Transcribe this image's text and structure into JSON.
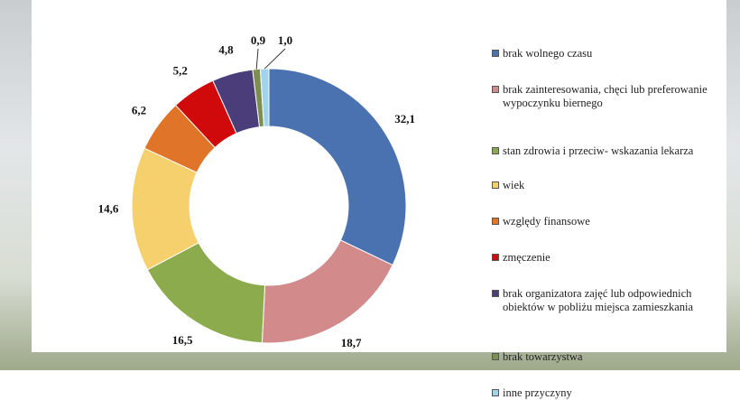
{
  "chart_data": {
    "type": "donut",
    "series": [
      {
        "name": "brak wolnego czasu",
        "color": "#4a72b0",
        "values": [
          32.1
        ],
        "value_labels": [
          "32,1"
        ]
      },
      {
        "name": "brak zainteresowania, chęci lub preferowanie wypoczynku biernego",
        "color": "#d28a8a",
        "values": [
          18.7
        ],
        "value_labels": [
          "18,7"
        ]
      },
      {
        "name": "stan zdrowia i przeciw- wskazania lekarza",
        "color": "#8cab4c",
        "values": [
          16.5
        ],
        "value_labels": [
          "16,5"
        ]
      },
      {
        "name": "wiek",
        "color": "#f6d06c",
        "values": [
          14.6
        ],
        "value_labels": [
          "14,6"
        ]
      },
      {
        "name": "względy finansowe",
        "color": "#e07428",
        "values": [
          6.2
        ],
        "value_labels": [
          "6,2"
        ]
      },
      {
        "name": "zmęczenie",
        "color": "#d00a0a",
        "values": [
          5.2
        ],
        "value_labels": [
          "5,2"
        ]
      },
      {
        "name": "brak organizatora zajęć lub odpowiednich obiektów w pobliżu miejsca zamieszkania",
        "color": "#4b3c7a",
        "values": [
          4.8
        ],
        "value_labels": [
          "4,8"
        ]
      },
      {
        "name": "brak towarzystwa",
        "color": "#7d8f50",
        "values": [
          0.9
        ],
        "value_labels": [
          "0,9"
        ]
      },
      {
        "name": "inne przyczyny",
        "color": "#9fd4ea",
        "values": [
          1.0
        ],
        "value_labels": [
          "1,0"
        ]
      }
    ]
  }
}
